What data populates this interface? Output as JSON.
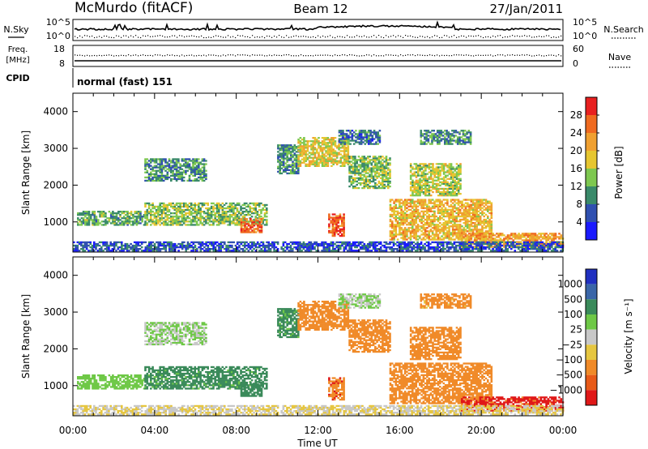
{
  "header": {
    "station": "McMurdo (fitACF)",
    "beam": "Beam 12",
    "date": "27/Jan/2011"
  },
  "noise_panel": {
    "left_label": "N.Sky",
    "left_ticks": [
      "10^5",
      "10^0"
    ],
    "right_label": "N.Search",
    "right_ticks": [
      "10^5",
      "10^0"
    ]
  },
  "freq_panel": {
    "left_label_1": "Freq.",
    "left_label_2": "[MHz]",
    "left_ticks": [
      "18",
      "8"
    ],
    "right_label": "Nave",
    "right_ticks": [
      "60",
      "0"
    ]
  },
  "cpid_panel": {
    "label": "CPID",
    "mode": "normal (fast) 151"
  },
  "power_panel": {
    "ylabel": "Slant Range [km]",
    "y_ticks": [
      "1000",
      "2000",
      "3000",
      "4000"
    ],
    "colorbar_label": "Power [dB]",
    "colorbar_ticks": [
      "4",
      "8",
      "12",
      "16",
      "20",
      "24",
      "28"
    ],
    "colors": [
      "#1a1aff",
      "#3050b0",
      "#3a8a6a",
      "#7ec850",
      "#e6c630",
      "#f0a030",
      "#ef6a20",
      "#e82020"
    ]
  },
  "velocity_panel": {
    "ylabel": "Slant Range [km]",
    "y_ticks": [
      "1000",
      "2000",
      "3000",
      "4000"
    ],
    "colorbar_label": "Velocity [m s⁻¹]",
    "colorbar_ticks": [
      "1000",
      "500",
      "100",
      "25",
      "−25",
      "−100",
      "−500",
      "−1000"
    ],
    "colors": [
      "#2030c0",
      "#3a66a8",
      "#3a8a5a",
      "#6ec846",
      "#c8c8c8",
      "#e6c640",
      "#f08a28",
      "#e85a18",
      "#e01818"
    ]
  },
  "x_axis": {
    "ticks": [
      "00:00",
      "04:00",
      "08:00",
      "12:00",
      "16:00",
      "20:00",
      "00:00"
    ],
    "label": "Time UT"
  },
  "chart_data": {
    "type": "heatmap",
    "x_range_hours": [
      0,
      24
    ],
    "y_range_km": [
      180,
      4500
    ],
    "power_colorbar_range_db": [
      0,
      32
    ],
    "velocity_colorbar_range_ms": [
      -1000,
      1000
    ],
    "echo_regions": [
      {
        "t0": 0.2,
        "t1": 3.5,
        "r0": 900,
        "r1": 1300,
        "power_db": 12,
        "velocity_ms": 60
      },
      {
        "t0": 3.5,
        "t1": 6.5,
        "r0": 2100,
        "r1": 2700,
        "power_db": 10,
        "velocity_ms": 25
      },
      {
        "t0": 3.5,
        "t1": 9.5,
        "r0": 900,
        "r1": 1500,
        "power_db": 14,
        "velocity_ms": 150
      },
      {
        "t0": 8.2,
        "t1": 9.2,
        "r0": 700,
        "r1": 1100,
        "power_db": 26,
        "velocity_ms": 300
      },
      {
        "t0": 10.0,
        "t1": 11.0,
        "r0": 2300,
        "r1": 3100,
        "power_db": 10,
        "velocity_ms": 150
      },
      {
        "t0": 11.0,
        "t1": 13.5,
        "r0": 2500,
        "r1": 3300,
        "power_db": 18,
        "velocity_ms": -300
      },
      {
        "t0": 12.5,
        "t1": 13.3,
        "r0": 600,
        "r1": 1200,
        "power_db": 27,
        "velocity_ms": -400
      },
      {
        "t0": 13.5,
        "t1": 15.5,
        "r0": 1900,
        "r1": 2800,
        "power_db": 14,
        "velocity_ms": -250
      },
      {
        "t0": 13.0,
        "t1": 15.0,
        "r0": 3100,
        "r1": 3500,
        "power_db": 8,
        "velocity_ms": 25
      },
      {
        "t0": 15.5,
        "t1": 20.5,
        "r0": 500,
        "r1": 1600,
        "power_db": 20,
        "velocity_ms": -300
      },
      {
        "t0": 16.5,
        "t1": 19.0,
        "r0": 1700,
        "r1": 2600,
        "power_db": 16,
        "velocity_ms": -350
      },
      {
        "t0": 17.0,
        "t1": 19.5,
        "r0": 3100,
        "r1": 3500,
        "power_db": 10,
        "velocity_ms": -150
      },
      {
        "t0": 19.0,
        "t1": 24.0,
        "r0": 300,
        "r1": 700,
        "power_db": 22,
        "velocity_ms": -700
      },
      {
        "t0": 0.0,
        "t1": 24.0,
        "r0": 200,
        "r1": 450,
        "power_db": 6,
        "velocity_ms": -25
      }
    ]
  }
}
